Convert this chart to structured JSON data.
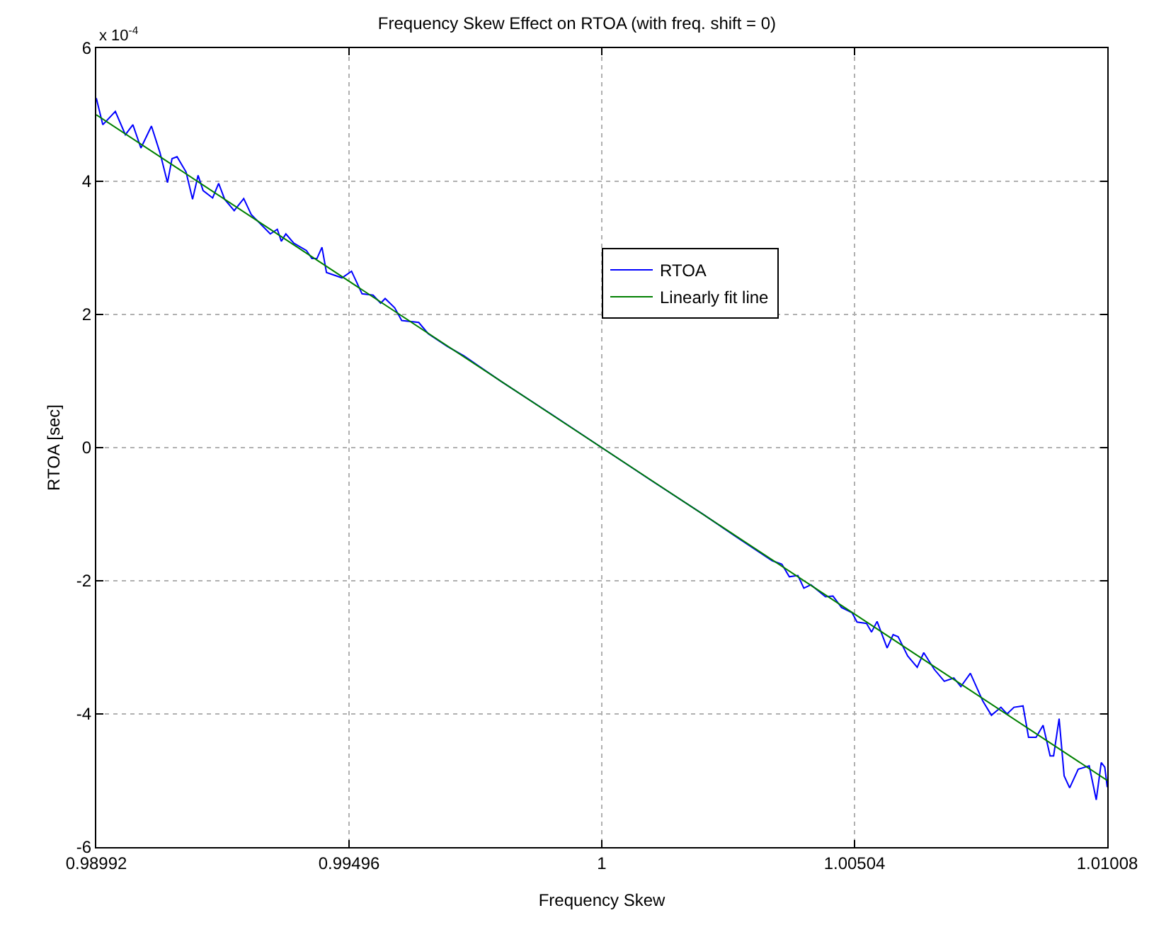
{
  "chart_data": {
    "type": "line",
    "title": "Frequency Skew Effect on RTOA (with freq. shift = 0)",
    "xlabel": "Frequency Skew",
    "ylabel": "RTOA [sec]",
    "annotations": [
      "x 10$^{-4}$"
    ],
    "series": [
      {
        "name": "RTOA",
        "color": "#0000ff",
        "x": [
          0.98992,
          0.99005,
          0.9903,
          0.9905,
          0.99065,
          0.99081,
          0.99102,
          0.99119,
          0.99134,
          0.99143,
          0.99153,
          0.99171,
          0.99184,
          0.99195,
          0.99205,
          0.99224,
          0.99236,
          0.99248,
          0.99267,
          0.99286,
          0.99301,
          0.99339,
          0.99353,
          0.99361,
          0.9937,
          0.99386,
          0.99411,
          0.99422,
          0.99432,
          0.99442,
          0.99451,
          0.99482,
          0.99501,
          0.99522,
          0.99544,
          0.99559,
          0.99568,
          0.99587,
          0.99601,
          0.99635,
          0.99654,
          0.99692,
          0.99725,
          0.9975,
          0.998,
          0.999,
          1.0,
          1.001,
          1.002,
          1.00268,
          1.0034,
          1.00359,
          1.00374,
          1.00391,
          1.00403,
          1.00417,
          1.00446,
          1.00461,
          1.00478,
          1.00499,
          1.00509,
          1.00528,
          1.00538,
          1.00549,
          1.00569,
          1.00581,
          1.00591,
          1.0061,
          1.00629,
          1.00642,
          1.00663,
          1.00683,
          1.00702,
          1.00716,
          1.00735,
          1.0076,
          1.00777,
          1.00796,
          1.00808,
          1.00822,
          1.0084,
          1.00851,
          1.00866,
          1.0088,
          1.00894,
          1.00901,
          1.00912,
          1.00922,
          1.00933,
          1.0095,
          1.00972,
          1.00986,
          1.00996,
          1.01003,
          1.01008
        ],
        "values": [
          5.25,
          4.85,
          5.05,
          4.7,
          4.85,
          4.5,
          4.83,
          4.43,
          3.98,
          4.34,
          4.37,
          4.14,
          3.73,
          4.09,
          3.86,
          3.75,
          3.97,
          3.73,
          3.56,
          3.74,
          3.5,
          3.21,
          3.28,
          3.1,
          3.21,
          3.07,
          2.96,
          2.84,
          2.84,
          3.01,
          2.63,
          2.55,
          2.65,
          2.31,
          2.29,
          2.17,
          2.24,
          2.1,
          1.91,
          1.88,
          1.71,
          1.52,
          1.38,
          1.25,
          0.99,
          0.5,
          0.0,
          -0.5,
          -0.99,
          -1.34,
          -1.7,
          -1.75,
          -1.94,
          -1.92,
          -2.11,
          -2.06,
          -2.24,
          -2.23,
          -2.4,
          -2.48,
          -2.62,
          -2.64,
          -2.77,
          -2.61,
          -3.01,
          -2.81,
          -2.84,
          -3.13,
          -3.3,
          -3.08,
          -3.33,
          -3.51,
          -3.46,
          -3.59,
          -3.39,
          -3.81,
          -4.02,
          -3.9,
          -4.0,
          -3.9,
          -3.88,
          -4.35,
          -4.35,
          -4.17,
          -4.63,
          -4.63,
          -4.07,
          -4.93,
          -5.11,
          -4.83,
          -4.78,
          -5.29,
          -4.73,
          -4.8,
          -5.1
        ]
      },
      {
        "name": "Linearly fit line",
        "color": "#008000",
        "x": [
          0.98992,
          1.01008
        ],
        "values": [
          5.0,
          -5.0
        ]
      }
    ],
    "xlim": [
      0.98992,
      1.01008
    ],
    "xticks": [
      0.98992,
      0.99496,
      1,
      1.00504,
      1.01008
    ],
    "ylim": [
      -6,
      6
    ],
    "yticks": [
      -6,
      -4,
      -2,
      0,
      2,
      4,
      6
    ],
    "grid": true,
    "legend": "top",
    "line_style": "solid"
  }
}
